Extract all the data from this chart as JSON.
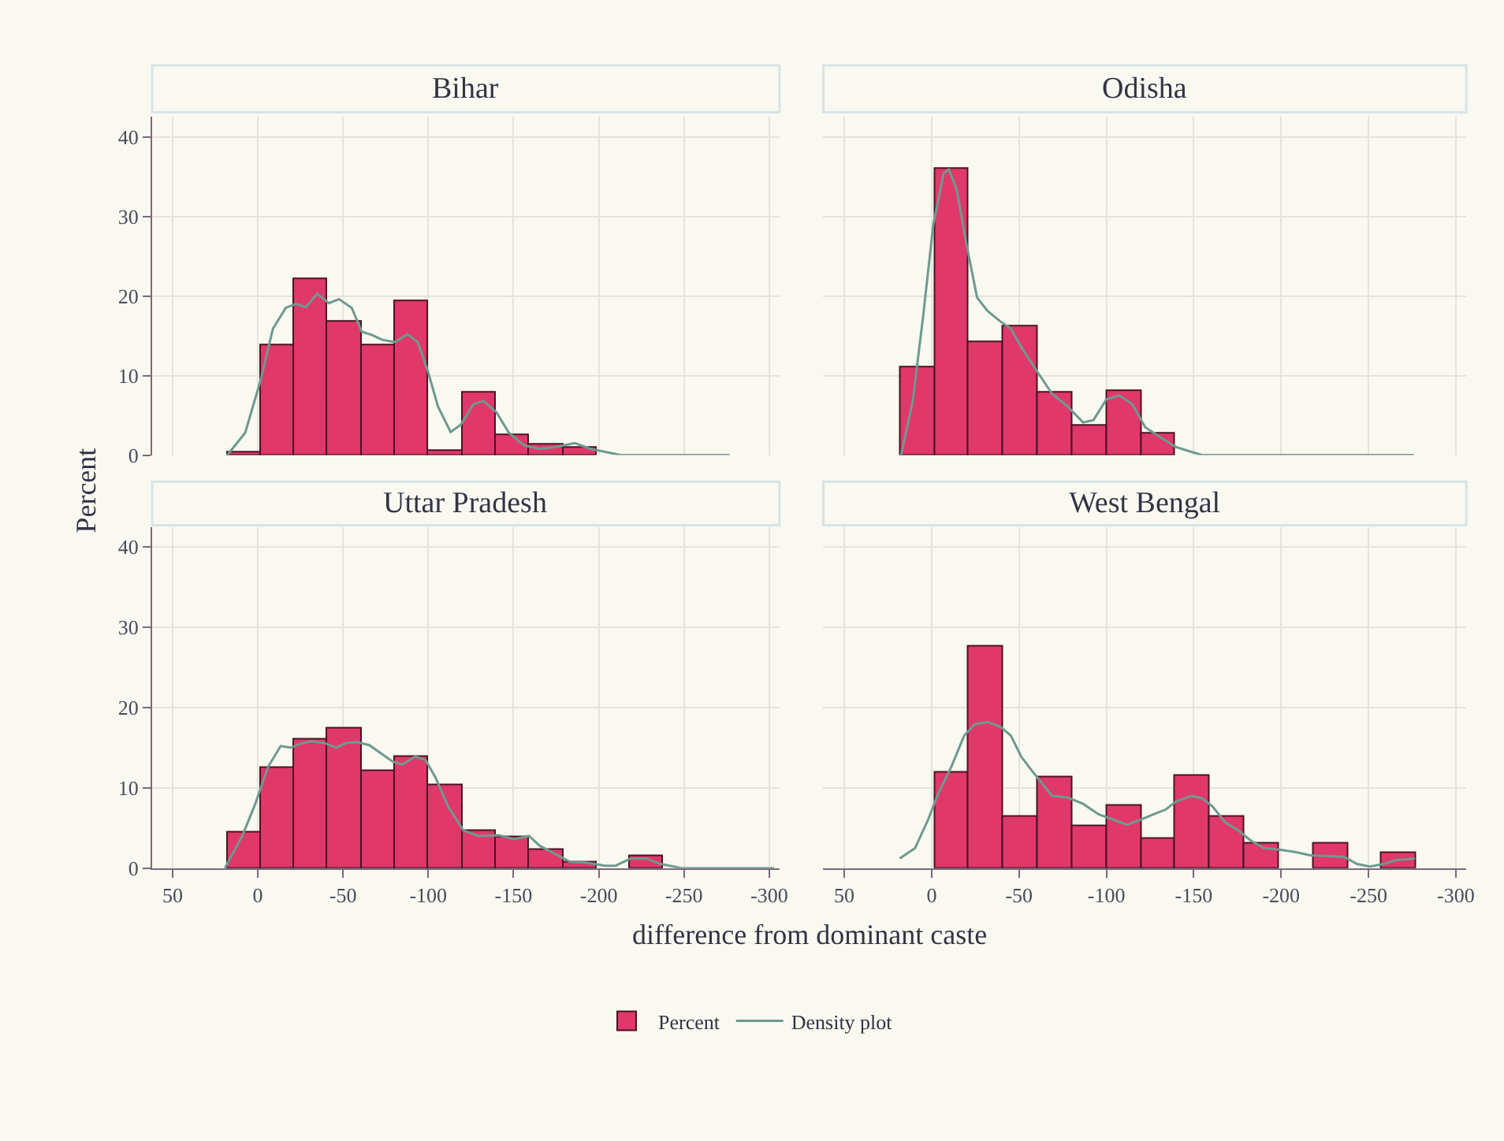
{
  "chart_data": [
    {
      "type": "histogram",
      "title": "Bihar",
      "xlabel": "difference from dominant caste",
      "ylabel": "Percent",
      "legend": "bottom",
      "xlim": [
        62,
        -306
      ],
      "xticks": [
        50,
        0,
        -50,
        -100,
        -150,
        -200,
        -250,
        -300
      ],
      "ylim": [
        0,
        42.5
      ],
      "yticks": [
        0,
        10,
        20,
        30,
        40
      ],
      "grid": true,
      "tick_labels": "y",
      "series": [
        {
          "name": "Percent",
          "color": "#e0386a",
          "bins": [
            18,
            -1.7,
            -21.4,
            -41.1,
            -60.8,
            -80.5,
            -100.2,
            -119.9,
            -139.6,
            -159.3,
            -179,
            -198.7
          ],
          "values": [
            0.3,
            13.8,
            22.2,
            16.8,
            13.7,
            19.3,
            0.5,
            7.8,
            2.5,
            1.4,
            1.0
          ]
        },
        {
          "type": "line",
          "name": "Density plot",
          "color": "#6e9a8e",
          "x": [
            17.9,
            7.4,
            -1.5,
            -8.9,
            -16.4,
            -22.3,
            -28.3,
            -34.8,
            -41.7,
            -47.6,
            -55.1,
            -61.0,
            -67.0,
            -72.9,
            -80.4,
            -87.8,
            -93.8,
            -99.7,
            -105.7,
            -113.1,
            -119.0,
            -126.5,
            -132.4,
            -139.9,
            -147.3,
            -156.3,
            -165.2,
            -174.1,
            -186.0,
            -194.9,
            -203.9,
            -212.8,
            -276.8
          ],
          "values": [
            0,
            2.8,
            9.3,
            15.9,
            18.5,
            19.0,
            18.6,
            20.3,
            19.1,
            19.6,
            18.5,
            15.5,
            15.1,
            14.5,
            14.2,
            15.2,
            14.2,
            10.6,
            6.1,
            2.9,
            3.8,
            6.4,
            6.8,
            5.4,
            2.8,
            1.2,
            0.8,
            1.0,
            1.5,
            0.8,
            0.4,
            0,
            0
          ]
        }
      ]
    },
    {
      "type": "histogram",
      "title": "Odisha",
      "xlim": [
        62,
        -306
      ],
      "xticks": [
        50,
        0,
        -50,
        -100,
        -150,
        -200,
        -250,
        -300
      ],
      "ylim": [
        0,
        42.5
      ],
      "yticks": [
        0,
        10,
        20,
        30,
        40
      ],
      "grid": true,
      "tick_labels": false,
      "series": [
        {
          "color": "#e0386a",
          "bins": [
            18,
            -1.7,
            -21.4,
            -41.1,
            -60.8,
            -80.5,
            -100.2,
            -119.9,
            -139.6
          ],
          "values": [
            11.0,
            35.9,
            14.1,
            16.2,
            7.8,
            3.6,
            8.0,
            2.6
          ]
        },
        {
          "type": "line",
          "color": "#6e9a8e",
          "x": [
            17.5,
            10.9,
            5.0,
            -0.9,
            -6.8,
            -9.8,
            -14.2,
            -20.1,
            -26.0,
            -32.0,
            -39.3,
            -45.3,
            -51.2,
            -60.1,
            -68.9,
            -77.8,
            -86.7,
            -92.6,
            -100.0,
            -107.4,
            -114.8,
            -122.2,
            -131.1,
            -139.9,
            -147.3,
            -154.7,
            -276.0
          ],
          "values": [
            0,
            6.7,
            17.2,
            28.9,
            35.4,
            35.9,
            33.5,
            26.3,
            19.8,
            18.1,
            16.8,
            15.9,
            13.6,
            10.6,
            7.7,
            6.1,
            4.1,
            4.4,
            7.0,
            7.5,
            6.4,
            3.5,
            2.2,
            1.0,
            0.5,
            0,
            0
          ]
        }
      ]
    },
    {
      "type": "histogram",
      "title": "Uttar Pradesh",
      "xlim": [
        62,
        -306
      ],
      "xticks": [
        50,
        0,
        -50,
        -100,
        -150,
        -200,
        -250,
        -300
      ],
      "ylim": [
        0,
        42.5
      ],
      "yticks": [
        0,
        10,
        20,
        30,
        40
      ],
      "grid": true,
      "series": [
        {
          "color": "#e0386a",
          "bins": [
            18,
            -1.7,
            -21.4,
            -41.1,
            -60.8,
            -80.5,
            -100.2,
            -119.9,
            -139.6,
            -159.3,
            -179,
            -198.7,
            -218.4,
            -238.1
          ],
          "values": [
            4.4,
            12.4,
            16.0,
            17.4,
            12.1,
            13.9,
            10.3,
            4.7,
            3.8,
            2.3,
            0.7,
            null,
            1.5
          ]
        },
        {
          "type": "line",
          "color": "#6e9a8e",
          "x": [
            19.3,
            8.9,
            1.5,
            -6.0,
            -13.4,
            -19.3,
            -25.3,
            -31.3,
            -38.7,
            -46.1,
            -52.1,
            -58.0,
            -65.5,
            -72.9,
            -78.9,
            -84.8,
            -92.3,
            -98.2,
            -104.2,
            -111.6,
            -120.5,
            -129.5,
            -141.4,
            -150.3,
            -159.2,
            -165.2,
            -174.1,
            -183.0,
            -192.0,
            -203.9,
            -209.8,
            -218.8,
            -227.7,
            -236.6,
            -248.5,
            -303.0
          ],
          "values": [
            0,
            4.1,
            8.0,
            12.6,
            15.2,
            15.0,
            15.5,
            15.8,
            15.6,
            15.0,
            15.6,
            15.7,
            15.3,
            14.2,
            13.3,
            12.9,
            13.9,
            13.5,
            11.3,
            7.7,
            4.7,
            4.0,
            4.1,
            3.6,
            4.0,
            2.8,
            1.8,
            0.8,
            0.7,
            0.3,
            0.3,
            1.2,
            1.2,
            0.5,
            0,
            0
          ]
        }
      ]
    },
    {
      "type": "histogram",
      "title": "West Bengal",
      "xlim": [
        62,
        -306
      ],
      "xticks": [
        50,
        0,
        -50,
        -100,
        -150,
        -200,
        -250,
        -300
      ],
      "ylim": [
        0,
        42.5
      ],
      "yticks": [
        0,
        10,
        20,
        30,
        40
      ],
      "grid": true,
      "tick_labels": "x",
      "series": [
        {
          "color": "#e0386a",
          "bins": [
            -1.7,
            -21.4,
            -41.1,
            -60.8,
            -80.5,
            -100.2,
            -119.9,
            -139.6,
            -159.3,
            -179,
            -198.7,
            -218.4,
            -238.1,
            -257.8,
            -277.5
          ],
          "values": [
            11.8,
            27.5,
            6.4,
            11.3,
            5.2,
            7.8,
            3.6,
            11.4,
            6.4,
            3.1,
            null,
            3.1,
            null,
            1.8
          ]
        },
        {
          "type": "line",
          "color": "#6e9a8e",
          "x": [
            18.3,
            9.5,
            2.1,
            -3.8,
            -11.2,
            -18.6,
            -24.6,
            -32.0,
            -39.3,
            -45.3,
            -51.2,
            -57.1,
            -63.0,
            -68.9,
            -77.8,
            -86.7,
            -95.6,
            -104.4,
            -111.8,
            -119.2,
            -128.1,
            -134.0,
            -139.9,
            -148.8,
            -154.7,
            -160.7,
            -168.0,
            -175.4,
            -182.8,
            -190.2,
            -199.1,
            -208.0,
            -216.9,
            -228.7,
            -236.1,
            -243.5,
            -250.9,
            -258.3,
            -265.7,
            -276.6
          ],
          "values": [
            1.2,
            2.5,
            6.0,
            9.3,
            12.6,
            16.5,
            17.9,
            18.2,
            17.6,
            16.5,
            13.9,
            12.2,
            10.6,
            9.0,
            8.8,
            8.0,
            6.7,
            6.0,
            5.4,
            6.0,
            6.8,
            7.3,
            8.3,
            9.0,
            8.7,
            7.7,
            5.7,
            4.7,
            3.4,
            2.5,
            2.3,
            2.0,
            1.6,
            1.5,
            1.4,
            0.5,
            0.2,
            0.5,
            1.0,
            1.2
          ]
        }
      ]
    }
  ]
}
